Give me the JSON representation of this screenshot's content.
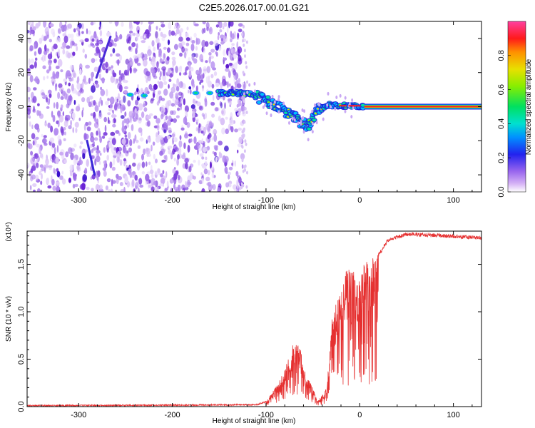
{
  "title": "C2E5.2026.017.00.01.G21",
  "chart_data": [
    {
      "type": "heatmap",
      "name": "spectrogram",
      "xlabel": "Height of straight line (km)",
      "ylabel": "Frequency (Hz)",
      "xlim": [
        -355,
        130
      ],
      "ylim": [
        -50,
        50
      ],
      "xticks": [
        -300,
        -200,
        -100,
        0,
        100
      ],
      "yticks": [
        -40,
        -20,
        0,
        20,
        40
      ],
      "noise_region_x": [
        -355,
        -123
      ],
      "signal_track": [
        {
          "x": -230,
          "y": 6.5
        },
        {
          "x": -175,
          "y": 8
        },
        {
          "x": -150,
          "y": 8
        },
        {
          "x": -130,
          "y": 8
        },
        {
          "x": -115,
          "y": 7
        },
        {
          "x": -100,
          "y": 4
        },
        {
          "x": -90,
          "y": 1
        },
        {
          "x": -80,
          "y": -2
        },
        {
          "x": -70,
          "y": -6
        },
        {
          "x": -60,
          "y": -10
        },
        {
          "x": -55,
          "y": -12
        },
        {
          "x": -45,
          "y": -2
        },
        {
          "x": -35,
          "y": 1
        },
        {
          "x": -20,
          "y": 0.5
        },
        {
          "x": -5,
          "y": 0.5
        },
        {
          "x": 5,
          "y": 0
        },
        {
          "x": 130,
          "y": 0
        }
      ],
      "colorbar": {
        "label": "Normalized spectral amplitude",
        "ticks": [
          "0.0",
          "0.2",
          "0.4",
          "0.6",
          "0.8"
        ],
        "range": [
          0,
          1
        ]
      }
    },
    {
      "type": "line",
      "name": "snr",
      "xlabel": "Height of straight line (km)",
      "ylabel": "SNR (10 * v/v)",
      "multiplier_label": "(x10⁴)",
      "xlim": [
        -355,
        130
      ],
      "ylim": [
        0,
        1.85
      ],
      "xticks": [
        -300,
        -200,
        -100,
        0,
        100
      ],
      "yticks": [
        "0.0",
        "0.5",
        "1.0",
        "1.5"
      ],
      "color": "#e53030",
      "envelope": [
        {
          "x": -355,
          "y": 0.01
        },
        {
          "x": -200,
          "y": 0.015
        },
        {
          "x": -110,
          "y": 0.02
        },
        {
          "x": -100,
          "y": 0.05
        },
        {
          "x": -90,
          "y": 0.2
        },
        {
          "x": -80,
          "y": 0.4
        },
        {
          "x": -70,
          "y": 0.7
        },
        {
          "x": -65,
          "y": 0.75
        },
        {
          "x": -60,
          "y": 0.4
        },
        {
          "x": -50,
          "y": 0.2
        },
        {
          "x": -45,
          "y": 0.05
        },
        {
          "x": -35,
          "y": 0.2
        },
        {
          "x": -30,
          "y": 0.9
        },
        {
          "x": -20,
          "y": 1.4
        },
        {
          "x": -10,
          "y": 1.45
        },
        {
          "x": 0,
          "y": 1.45
        },
        {
          "x": 10,
          "y": 1.55
        },
        {
          "x": 20,
          "y": 1.6
        },
        {
          "x": 30,
          "y": 1.75
        },
        {
          "x": 50,
          "y": 1.82
        },
        {
          "x": 90,
          "y": 1.8
        },
        {
          "x": 130,
          "y": 1.78
        }
      ]
    }
  ]
}
